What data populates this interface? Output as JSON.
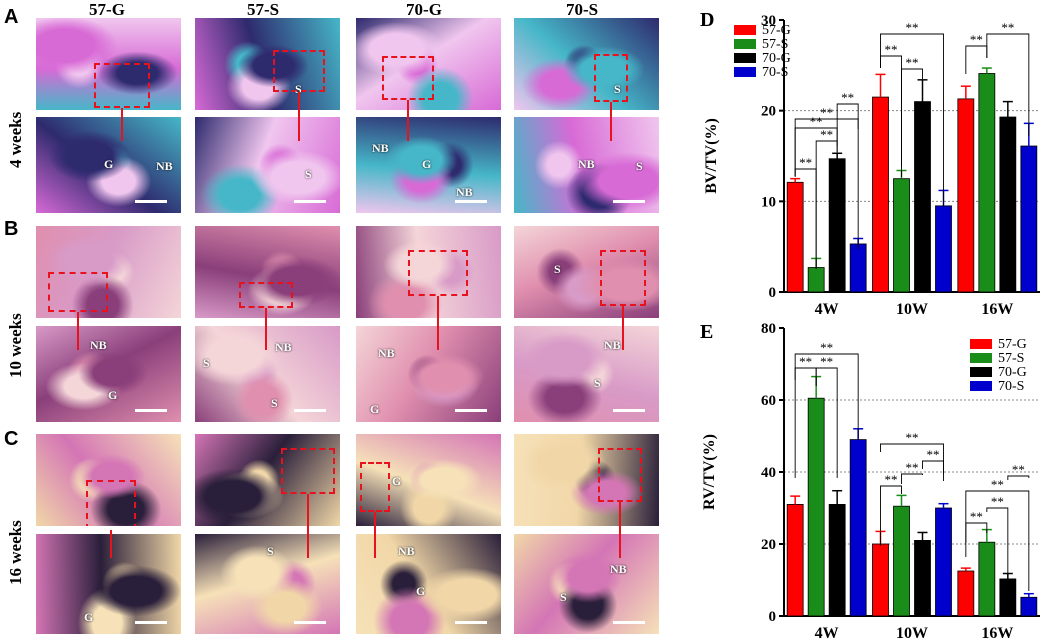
{
  "panels": {
    "A": "A",
    "B": "B",
    "C": "C",
    "D": "D",
    "E": "E"
  },
  "rows": [
    "4 weeks",
    "10 weeks",
    "16 weeks"
  ],
  "columns": [
    "57-G",
    "57-S",
    "70-G",
    "70-S"
  ],
  "tile_labels": {
    "r1c1b": [
      "G",
      "NB"
    ],
    "r1c2t": [
      "S"
    ],
    "r1c2b": [
      "S"
    ],
    "r1c3b": [
      "NB",
      "G",
      "NB"
    ],
    "r1c4t": [
      "S"
    ],
    "r1c4b": [
      "NB",
      "S"
    ],
    "r2c1b": [
      "NB",
      "G"
    ],
    "r2c2b": [
      "S",
      "NB",
      "S"
    ],
    "r2c3b": [
      "NB",
      "G"
    ],
    "r2c4t": [
      "S"
    ],
    "r2c4b": [
      "NB",
      "S"
    ],
    "r3c2b": [
      "S"
    ],
    "r3c3t": [
      "G"
    ],
    "r3c3b": [
      "NB",
      "G"
    ],
    "r3c4b": [
      "NB",
      "S"
    ],
    "r3c1b": [
      "G"
    ]
  },
  "colors": {
    "57-G": "#ff0000",
    "57-S": "#1a8c1a",
    "70-G": "#000000",
    "70-S": "#0000cc",
    "annotation": "#e8121e"
  },
  "chart_data": [
    {
      "type": "bar",
      "panel": "D",
      "ylabel": "BV/TV(%)",
      "categories": [
        "4W",
        "10W",
        "16W"
      ],
      "ylim": [
        0,
        30
      ],
      "yticks": [
        "0",
        "10",
        "20",
        "30"
      ],
      "grid": "dotted horizontal at 10, 20",
      "legend_position": "top-left",
      "series": [
        {
          "name": "57-G",
          "values": [
            12.1,
            21.5,
            21.3
          ],
          "errors": [
            0.4,
            2.5,
            1.4
          ]
        },
        {
          "name": "57-S",
          "values": [
            2.7,
            12.5,
            24.1
          ],
          "errors": [
            1.0,
            0.9,
            0.6
          ]
        },
        {
          "name": "70-G",
          "values": [
            14.7,
            21.0,
            19.3
          ],
          "errors": [
            0.6,
            2.4,
            1.7
          ]
        },
        {
          "name": "70-S",
          "values": [
            5.3,
            9.5,
            16.1
          ],
          "errors": [
            0.6,
            1.7,
            2.5
          ]
        }
      ],
      "significance": [
        "**",
        "**",
        "**",
        "**",
        "**",
        "**",
        "**",
        "**",
        "**",
        "**"
      ]
    },
    {
      "type": "bar",
      "panel": "E",
      "ylabel": "RV/TV(%)",
      "categories": [
        "4W",
        "10W",
        "16W"
      ],
      "ylim": [
        0,
        80
      ],
      "yticks": [
        "0",
        "20",
        "40",
        "60",
        "80"
      ],
      "grid": "dotted horizontal at 20, 40, 60",
      "legend_position": "top-right",
      "series": [
        {
          "name": "57-G",
          "values": [
            31,
            20,
            12.5
          ],
          "errors": [
            2.3,
            3.5,
            0.8
          ]
        },
        {
          "name": "57-S",
          "values": [
            60.5,
            30.5,
            20.5
          ],
          "errors": [
            6,
            3,
            3.5
          ]
        },
        {
          "name": "70-G",
          "values": [
            31,
            21,
            10.3
          ],
          "errors": [
            3.8,
            2.2,
            1.5
          ]
        },
        {
          "name": "70-S",
          "values": [
            49,
            30,
            5.2
          ],
          "errors": [
            3,
            1.2,
            1
          ]
        }
      ],
      "significance": [
        "**",
        "**",
        "**",
        "**",
        "**",
        "**",
        "**",
        "**",
        "**",
        "**",
        "**"
      ]
    }
  ]
}
